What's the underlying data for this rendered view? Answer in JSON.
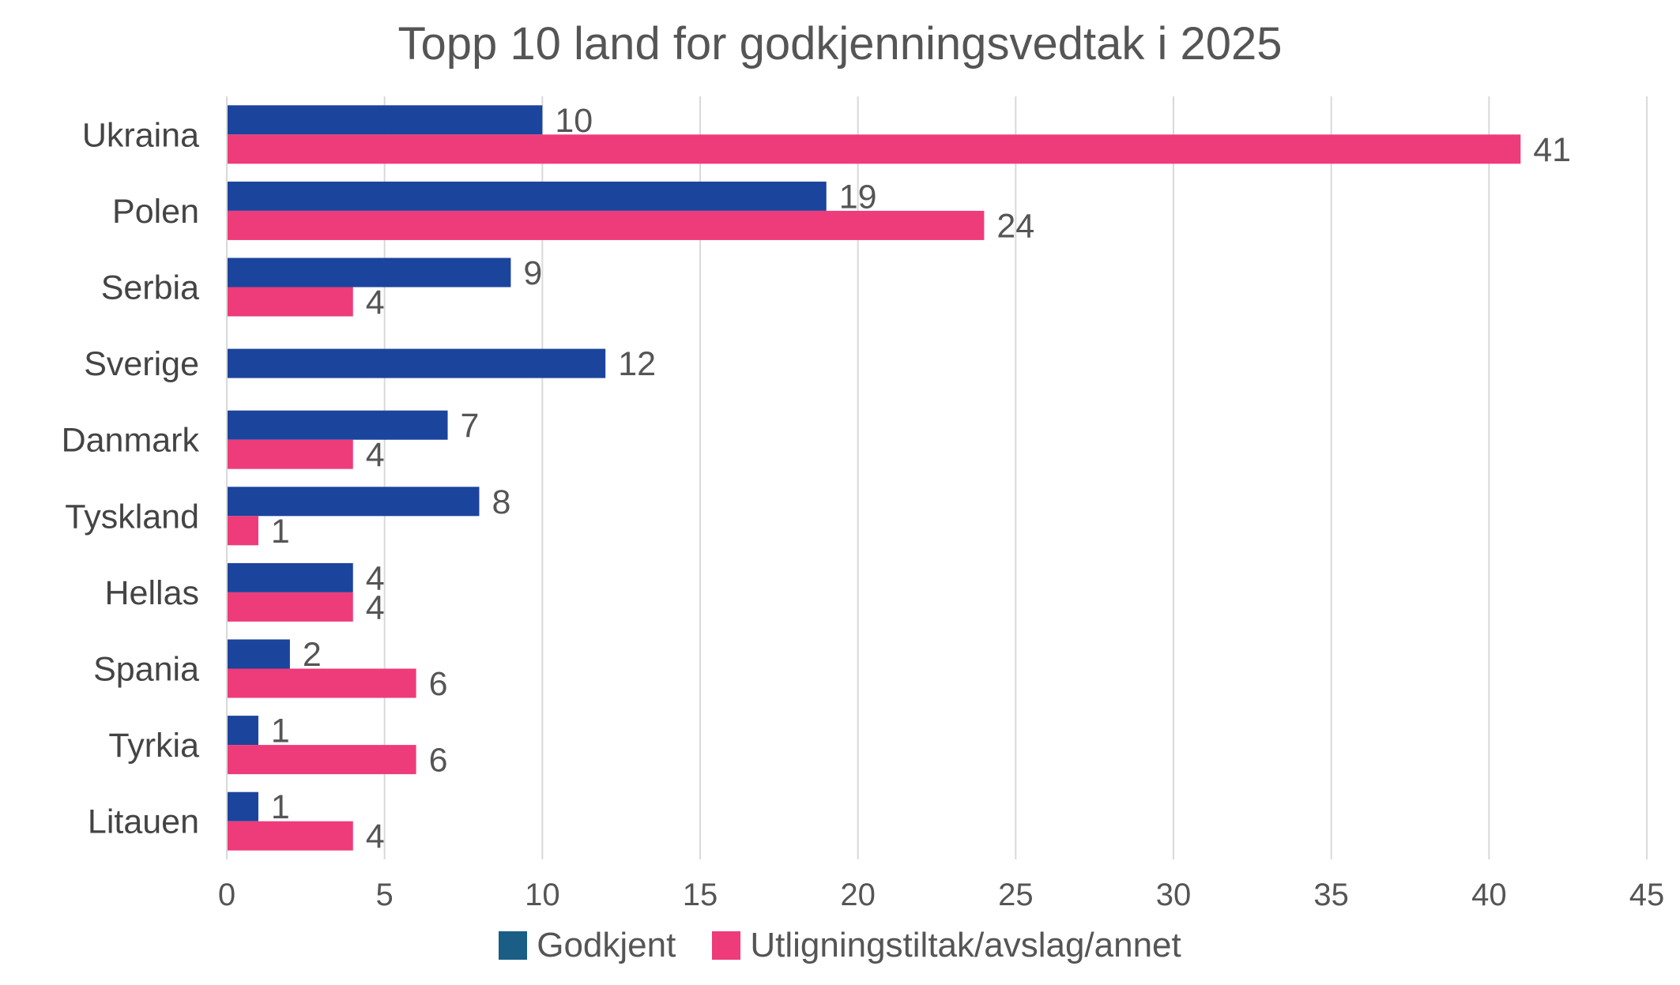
{
  "chart_data": {
    "type": "bar",
    "orientation": "horizontal",
    "title": "Topp 10 land for godkjenningsvedtak i 2025",
    "categories": [
      "Ukraina",
      "Polen",
      "Serbia",
      "Sverige",
      "Danmark",
      "Tyskland",
      "Hellas",
      "Spania",
      "Tyrkia",
      "Litauen"
    ],
    "series": [
      {
        "name": "Godkjent",
        "color": "#1B449C",
        "legend_color": "#1A5E86",
        "values": [
          10,
          19,
          9,
          12,
          7,
          8,
          4,
          2,
          1,
          1
        ]
      },
      {
        "name": "Utligningstiltak/avslag/annet",
        "color": "#EE3B7A",
        "legend_color": "#EE3B7A",
        "values": [
          41,
          24,
          4,
          null,
          4,
          1,
          4,
          6,
          6,
          4
        ]
      }
    ],
    "xlim": [
      0,
      45
    ],
    "xticks": [
      "0",
      "5",
      "10",
      "15",
      "20",
      "25",
      "30",
      "35",
      "40",
      "45"
    ],
    "grid": true,
    "legend_position": "bottom"
  }
}
